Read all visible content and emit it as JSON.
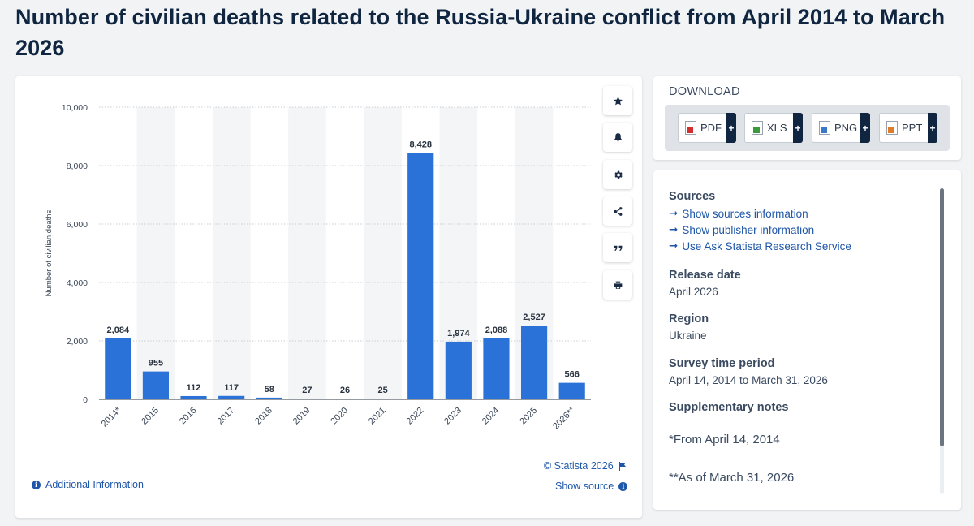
{
  "page": {
    "title": "Number of civilian deaths related to the Russia-Ukraine conflict from April 2014 to March 2026"
  },
  "chart_data": {
    "type": "bar",
    "categories": [
      "2014*",
      "2015",
      "2016",
      "2017",
      "2018",
      "2019",
      "2020",
      "2021",
      "2022",
      "2023",
      "2024",
      "2025",
      "2026**"
    ],
    "values": [
      2084,
      955,
      112,
      117,
      58,
      27,
      26,
      25,
      8428,
      1974,
      2088,
      2527,
      566
    ],
    "value_labels": [
      "2,084",
      "955",
      "112",
      "117",
      "58",
      "27",
      "26",
      "25",
      "8,428",
      "1,974",
      "2,088",
      "2,527",
      "566"
    ],
    "ylabel": "Number of civilian deaths",
    "ylim": [
      0,
      10000
    ],
    "yticks": [
      0,
      2000,
      4000,
      6000,
      8000,
      10000
    ],
    "ytick_labels": [
      "0",
      "2,000",
      "4,000",
      "6,000",
      "8,000",
      "10,000"
    ],
    "bar_color": "#2a72d8",
    "grid": true,
    "alternating_bands": true
  },
  "chart_footer": {
    "copyright": "© Statista 2026",
    "additional_info": "Additional Information",
    "show_source": "Show source"
  },
  "toolbar": {
    "items": [
      "star-icon",
      "bell-icon",
      "gear-icon",
      "share-icon",
      "quote-icon",
      "print-icon"
    ]
  },
  "download": {
    "title": "DOWNLOAD",
    "buttons": [
      {
        "label": "PDF",
        "color": "#d32f2f"
      },
      {
        "label": "XLS",
        "color": "#3c9a3c"
      },
      {
        "label": "PNG",
        "color": "#3a78c9"
      },
      {
        "label": "PPT",
        "color": "#e07b2a"
      }
    ],
    "plus": "+"
  },
  "info": {
    "sources_heading": "Sources",
    "source_links": [
      "Show sources information",
      "Show publisher information",
      "Use Ask Statista Research Service"
    ],
    "release_heading": "Release date",
    "release_value": "April 2026",
    "region_heading": "Region",
    "region_value": "Ukraine",
    "period_heading": "Survey time period",
    "period_value": "April 14, 2014 to March 31, 2026",
    "notes_heading": "Supplementary notes",
    "notes": [
      "*From April 14, 2014",
      "**As of March 31, 2026"
    ]
  }
}
